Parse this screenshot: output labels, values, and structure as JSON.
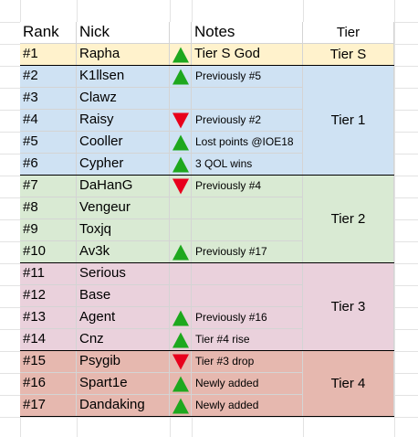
{
  "headers": {
    "rank": "Rank",
    "nick": "Nick",
    "notes": "Notes",
    "tier": "Tier"
  },
  "colors": {
    "tierS": "#fff2cc",
    "tier1": "#cfe2f3",
    "tier2": "#d9ead3",
    "tier3": "#ead1dc",
    "tier4": "#e6b8af",
    "up": "#1ea81e",
    "down": "#e8001c"
  },
  "rows": [
    {
      "rank": "#1",
      "nick": "Rapha",
      "trend": "up",
      "note": "Tier S God",
      "tier": "S"
    },
    {
      "rank": "#2",
      "nick": "K1llsen",
      "trend": "up",
      "note": "Previously #5",
      "tier": "1"
    },
    {
      "rank": "#3",
      "nick": "Clawz",
      "trend": "",
      "note": "",
      "tier": "1"
    },
    {
      "rank": "#4",
      "nick": "Raisy",
      "trend": "down",
      "note": "Previously #2",
      "tier": "1"
    },
    {
      "rank": "#5",
      "nick": "Cooller",
      "trend": "up",
      "note": "Lost points @IOE18",
      "tier": "1"
    },
    {
      "rank": "#6",
      "nick": "Cypher",
      "trend": "up",
      "note": "3 QOL wins",
      "tier": "1"
    },
    {
      "rank": "#7",
      "nick": "DaHanG",
      "trend": "down",
      "note": "Previously #4",
      "tier": "2"
    },
    {
      "rank": "#8",
      "nick": "Vengeur",
      "trend": "",
      "note": "",
      "tier": "2"
    },
    {
      "rank": "#9",
      "nick": "Toxjq",
      "trend": "",
      "note": "",
      "tier": "2"
    },
    {
      "rank": "#10",
      "nick": "Av3k",
      "trend": "up",
      "note": "Previously #17",
      "tier": "2"
    },
    {
      "rank": "#11",
      "nick": "Serious",
      "trend": "",
      "note": "",
      "tier": "3"
    },
    {
      "rank": "#12",
      "nick": "Base",
      "trend": "",
      "note": "",
      "tier": "3"
    },
    {
      "rank": "#13",
      "nick": "Agent",
      "trend": "up",
      "note": "Previously #16",
      "tier": "3"
    },
    {
      "rank": "#14",
      "nick": "Cnz",
      "trend": "up",
      "note": "Tier #4 rise",
      "tier": "3"
    },
    {
      "rank": "#15",
      "nick": "Psygib",
      "trend": "down",
      "note": "Tier #3 drop",
      "tier": "4"
    },
    {
      "rank": "#16",
      "nick": "Spart1e",
      "trend": "up",
      "note": "Newly added",
      "tier": "4"
    },
    {
      "rank": "#17",
      "nick": "Dandaking",
      "trend": "up",
      "note": "Newly added",
      "tier": "4"
    }
  ],
  "tiers": [
    {
      "id": "S",
      "label": "Tier S",
      "color_key": "tierS"
    },
    {
      "id": "1",
      "label": "Tier 1",
      "color_key": "tier1"
    },
    {
      "id": "2",
      "label": "Tier 2",
      "color_key": "tier2"
    },
    {
      "id": "3",
      "label": "Tier 3",
      "color_key": "tier3"
    },
    {
      "id": "4",
      "label": "Tier 4",
      "color_key": "tier4"
    }
  ]
}
